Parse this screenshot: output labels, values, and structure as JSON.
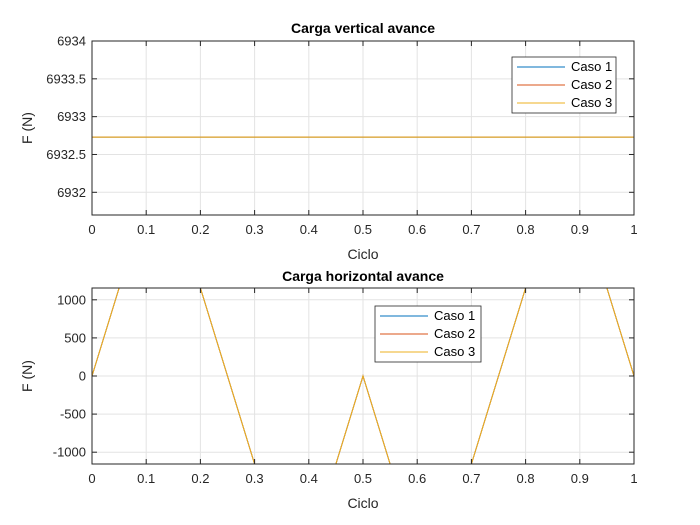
{
  "chart_data": [
    {
      "type": "line",
      "title": "Carga vertical avance",
      "xlabel": "Ciclo",
      "ylabel": "F (N)",
      "xlim": [
        0,
        1
      ],
      "ylim": [
        6931.7,
        6934
      ],
      "xticks": [
        0,
        0.1,
        0.2,
        0.3,
        0.4,
        0.5,
        0.6,
        0.7,
        0.8,
        0.9,
        1
      ],
      "yticks": [
        6932,
        6932.5,
        6933,
        6933.5,
        6934
      ],
      "xtick_labels": [
        "0",
        "0.1",
        "0.2",
        "0.3",
        "0.4",
        "0.5",
        "0.6",
        "0.7",
        "0.8",
        "0.9",
        "1"
      ],
      "ytick_labels": [
        "6932",
        "6932.5",
        "6933",
        "6933.5",
        "6934"
      ],
      "grid": true,
      "legend_position": "top-right",
      "series": [
        {
          "name": "Caso 1",
          "color": "#0072BD",
          "x": [
            0,
            1
          ],
          "y": [
            6932.73,
            6932.73
          ]
        },
        {
          "name": "Caso 2",
          "color": "#D95319",
          "x": [
            0,
            1
          ],
          "y": [
            6932.73,
            6932.73
          ]
        },
        {
          "name": "Caso 3",
          "color": "#EDB120",
          "x": [
            0,
            1
          ],
          "y": [
            6932.73,
            6932.73
          ]
        }
      ]
    },
    {
      "type": "line",
      "title": "Carga horizontal avance",
      "xlabel": "Ciclo",
      "ylabel": "F (N)",
      "xlim": [
        0,
        1
      ],
      "ylim": [
        -1155,
        1155
      ],
      "xticks": [
        0,
        0.1,
        0.2,
        0.3,
        0.4,
        0.5,
        0.6,
        0.7,
        0.8,
        0.9,
        1
      ],
      "yticks": [
        -1000,
        -500,
        0,
        500,
        1000
      ],
      "xtick_labels": [
        "0",
        "0.1",
        "0.2",
        "0.3",
        "0.4",
        "0.5",
        "0.6",
        "0.7",
        "0.8",
        "0.9",
        "1"
      ],
      "ytick_labels": [
        "-1000",
        "-500",
        "0",
        "500",
        "1000"
      ],
      "grid": true,
      "legend_position": "top-center",
      "series": [
        {
          "name": "Caso 1",
          "color": "#0072BD",
          "x": [
            0,
            0.05,
            0.2,
            0.3,
            0.45,
            0.5,
            0.55,
            0.7,
            0.8,
            0.95,
            1
          ],
          "y": [
            0,
            1155,
            1155,
            -1155,
            -1155,
            0,
            -1155,
            -1155,
            1155,
            1155,
            0
          ]
        },
        {
          "name": "Caso 2",
          "color": "#D95319",
          "x": [
            0,
            0.05,
            0.2,
            0.3,
            0.45,
            0.5,
            0.55,
            0.7,
            0.8,
            0.95,
            1
          ],
          "y": [
            0,
            1155,
            1155,
            -1155,
            -1155,
            0,
            -1155,
            -1155,
            1155,
            1155,
            0
          ]
        },
        {
          "name": "Caso 3",
          "color": "#EDB120",
          "x": [
            0,
            0.05,
            0.2,
            0.3,
            0.45,
            0.5,
            0.55,
            0.7,
            0.8,
            0.95,
            1
          ],
          "y": [
            0,
            1155,
            1155,
            -1155,
            -1155,
            0,
            -1155,
            -1155,
            1155,
            1155,
            0
          ]
        }
      ]
    }
  ]
}
